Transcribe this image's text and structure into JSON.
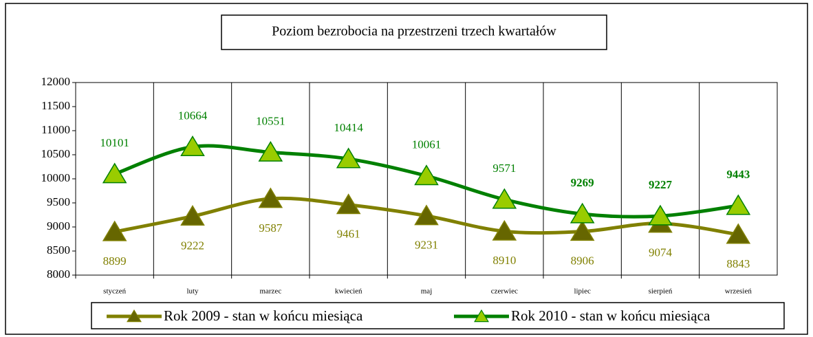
{
  "chart_data": {
    "type": "line",
    "title": "Poziom bezrobocia na  przestrzeni trzech kwartałów",
    "categories": [
      "styczeń",
      "luty",
      "marzec",
      "kwiecień",
      "maj",
      "czerwiec",
      "lipiec",
      "sierpień",
      "wrzesień"
    ],
    "series": [
      {
        "name": "Rok 2009 - stan w końcu miesiąca",
        "color": "#808000",
        "marker_color": "#666600",
        "values": [
          8899,
          9222,
          9587,
          9461,
          9231,
          8910,
          8906,
          9074,
          8843
        ]
      },
      {
        "name": "Rok 2010 - stan w końcu miesiąca",
        "color": "#008000",
        "marker_color": "#99cc00",
        "values": [
          10101,
          10664,
          10551,
          10414,
          10061,
          9571,
          9269,
          9227,
          9443
        ]
      }
    ],
    "ylim": [
      8000,
      12000
    ],
    "yticks": [
      8000,
      8500,
      9000,
      9500,
      10000,
      10500,
      11000,
      11500,
      12000
    ],
    "smooth": true,
    "grid": "vertical",
    "legend": "bottom"
  }
}
